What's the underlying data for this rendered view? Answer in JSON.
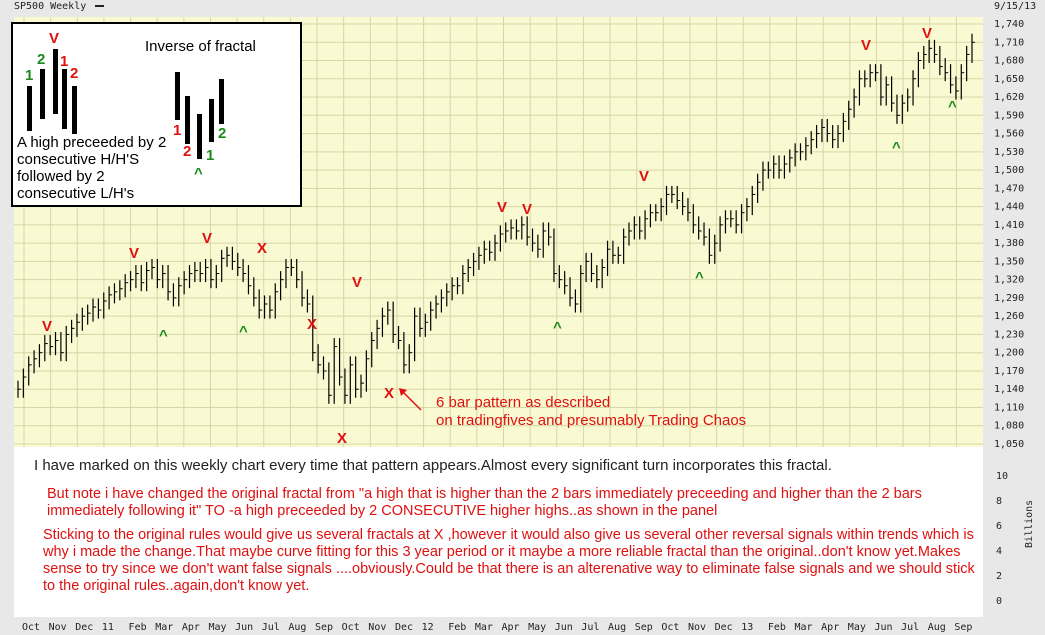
{
  "header": {
    "symbol": "SP500 Weekly",
    "date": "9/15/13"
  },
  "panel": {
    "fractal_caption": "A high preceeded by 2 consecutive H/H'S followed by 2 consecutive L/H's",
    "inverse_title": "Inverse of fractal",
    "fractal_numbers": [
      "1",
      "2",
      "1",
      "2"
    ],
    "inverse_numbers": [
      "1",
      "2",
      "1",
      "2"
    ],
    "top_marker": "V",
    "bottom_marker": "^"
  },
  "annotations": {
    "arrow_note_line1": "6 bar pattern as described",
    "arrow_note_line2": "on tradingfives  and presumably Trading Chaos",
    "note_main": "I have marked on this weekly chart every time that pattern appears.Almost every significant turn incorporates this fractal.",
    "note_change": "But note i have changed the original fractal from \"a high that is higher than the 2 bars immediately preceeding and higher than the 2 bars immediately following it\" TO -a high preceeded by 2 CONSECUTIVE  higher highs..as shown in the panel",
    "note_rules": "Sticking to the original rules would give us several fractals at X ,however it would also give us several other reversal signals within trends which is why i made the change.That maybe curve fitting for this 3 year period or it maybe a more reliable fractal than the original..don't know yet.Makes sense to try since we don't want false signals ....obviously.Could be that there is an alterenative way to eliminate false signals and we should stick to the original rules..again,don't know yet."
  },
  "colors": {
    "plot_bg": "#fafad2",
    "grid": "#d6d6a8",
    "up_marker": "#e01010",
    "down_marker": "#1a8a1a",
    "bars": "#000000"
  },
  "chart_data": {
    "type": "ohlc",
    "title": "SP500 Weekly",
    "price_axis": {
      "ticks": [
        "1,740",
        "1,710",
        "1,680",
        "1,650",
        "1,620",
        "1,590",
        "1,560",
        "1,530",
        "1,500",
        "1,470",
        "1,440",
        "1,410",
        "1,380",
        "1,350",
        "1,320",
        "1,290",
        "1,260",
        "1,230",
        "1,200",
        "1,170",
        "1,140",
        "1,110",
        "1,080",
        "1,050"
      ],
      "ylim": [
        1050,
        1740
      ]
    },
    "volume_axis": {
      "label": "Billions",
      "ticks": [
        "10",
        "8",
        "6",
        "4",
        "2",
        "0"
      ],
      "ylim": [
        0,
        10
      ]
    },
    "time_axis": {
      "labels": [
        "Oct",
        "Nov",
        "Dec",
        "11",
        "Feb",
        "Mar",
        "Apr",
        "May",
        "Jun",
        "Jul",
        "Aug",
        "Sep",
        "Oct",
        "Nov",
        "Dec",
        "12",
        "Feb",
        "Mar",
        "Apr",
        "May",
        "Jun",
        "Jul",
        "Aug",
        "Sep",
        "Oct",
        "Nov",
        "Dec",
        "13",
        "Feb",
        "Mar",
        "Apr",
        "May",
        "Jun",
        "Jul",
        "Aug",
        "Sep"
      ]
    },
    "closes": [
      1140,
      1160,
      1180,
      1190,
      1200,
      1215,
      1210,
      1220,
      1200,
      1230,
      1240,
      1250,
      1260,
      1265,
      1275,
      1270,
      1285,
      1295,
      1300,
      1305,
      1315,
      1320,
      1330,
      1315,
      1335,
      1340,
      1320,
      1330,
      1300,
      1290,
      1310,
      1320,
      1330,
      1335,
      1330,
      1340,
      1320,
      1330,
      1355,
      1360,
      1350,
      1340,
      1330,
      1310,
      1290,
      1270,
      1280,
      1270,
      1300,
      1320,
      1340,
      1340,
      1320,
      1290,
      1280,
      1200,
      1180,
      1170,
      1130,
      1210,
      1160,
      1130,
      1180,
      1140,
      1150,
      1190,
      1220,
      1240,
      1260,
      1270,
      1230,
      1220,
      1180,
      1200,
      1260,
      1240,
      1250,
      1270,
      1280,
      1290,
      1300,
      1310,
      1310,
      1330,
      1340,
      1350,
      1360,
      1370,
      1365,
      1380,
      1395,
      1400,
      1405,
      1400,
      1410,
      1390,
      1380,
      1370,
      1400,
      1390,
      1330,
      1320,
      1310,
      1290,
      1280,
      1330,
      1350,
      1330,
      1320,
      1340,
      1370,
      1360,
      1360,
      1390,
      1400,
      1410,
      1400,
      1420,
      1430,
      1430,
      1440,
      1460,
      1460,
      1450,
      1440,
      1430,
      1410,
      1400,
      1390,
      1360,
      1380,
      1410,
      1420,
      1420,
      1410,
      1430,
      1440,
      1460,
      1480,
      1500,
      1500,
      1510,
      1500,
      1510,
      1520,
      1530,
      1530,
      1540,
      1550,
      1560,
      1570,
      1560,
      1550,
      1560,
      1580,
      1600,
      1620,
      1650,
      1650,
      1660,
      1660,
      1620,
      1640,
      1610,
      1590,
      1610,
      1620,
      1650,
      1680,
      1690,
      1700,
      1690,
      1670,
      1660,
      1640,
      1630,
      1660,
      1690,
      1710
    ],
    "fractal_highs_V": [
      "Dec 10",
      "Mar 11",
      "May 11",
      "Aug 11",
      "Apr 12",
      "May 12",
      "Sep 12",
      "May 13",
      "Aug 13"
    ],
    "original_rule_fractals_X": [
      "Jun 11",
      "Aug 11",
      "Oct 11",
      "Nov 11"
    ],
    "fractal_lows_caret": [
      "Mar 11",
      "Jun 11",
      "Jun 12",
      "Nov 12",
      "Jun 13",
      "Aug 13"
    ]
  }
}
